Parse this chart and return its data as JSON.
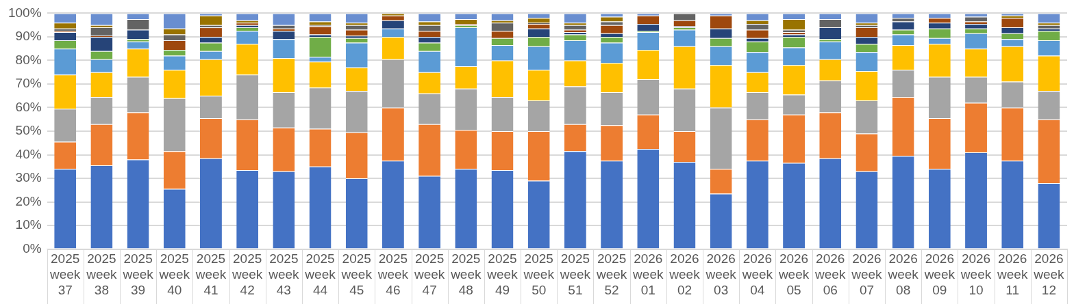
{
  "chart_data": {
    "type": "bar",
    "stacked": true,
    "categories": [
      "2025 week 37",
      "2025 week 38",
      "2025 week 39",
      "2025 week 40",
      "2025 week 41",
      "2025 week 42",
      "2025 week 43",
      "2025 week 44",
      "2025 week 45",
      "2025 week 46",
      "2025 week 47",
      "2025 week 48",
      "2025 week 49",
      "2025 week 50",
      "2025 week 51",
      "2025 week 52",
      "2026 week 01",
      "2026 week 02",
      "2026 week 03",
      "2026 week 04",
      "2026 week 05",
      "2026 week 06",
      "2026 week 07",
      "2026 week 08",
      "2026 week 09",
      "2026 week 10",
      "2026 week 11",
      "2026 week 12"
    ],
    "series": [
      {
        "color": "#4472c4",
        "values": [
          34,
          35.5,
          38,
          25.5,
          38.5,
          33.5,
          33,
          35,
          30,
          37.5,
          31,
          34,
          33.5,
          29,
          41.5,
          37.5,
          42.5,
          37,
          23.5,
          37.5,
          36.5,
          38.5,
          33,
          39.5,
          34,
          41,
          37.5,
          28
        ]
      },
      {
        "color": "#ed7d31",
        "values": [
          11.5,
          17.5,
          20,
          16,
          17,
          21.5,
          18.5,
          16,
          19.5,
          22.5,
          22,
          16.5,
          16.5,
          21,
          11.5,
          15,
          14.5,
          13,
          10.5,
          17.5,
          20.5,
          19.5,
          16,
          25,
          21.5,
          21,
          22.5,
          27
        ]
      },
      {
        "color": "#a5a5a5",
        "values": [
          14,
          11.5,
          15,
          22.5,
          9.5,
          19,
          15,
          17.5,
          17.5,
          20.5,
          13,
          17.5,
          14.5,
          13,
          16,
          14,
          15,
          18,
          26,
          11.5,
          8.5,
          13.5,
          14,
          11.5,
          17.5,
          11,
          11,
          12
        ]
      },
      {
        "color": "#ffc000",
        "values": [
          14.5,
          10.5,
          12,
          12,
          15.5,
          13,
          14.5,
          11,
          10,
          9.5,
          9,
          9.5,
          15.5,
          13,
          11,
          12.5,
          12.5,
          18,
          18,
          8.5,
          12.5,
          9,
          12.5,
          10.5,
          14,
          12,
          15,
          15
        ]
      },
      {
        "color": "#5b9bd5",
        "values": [
          11,
          5.5,
          3,
          6,
          3.5,
          5.5,
          8,
          2,
          10.5,
          3.5,
          9,
          16.5,
          6.5,
          10,
          8.5,
          8.5,
          7.5,
          7,
          8,
          8.5,
          7.5,
          7.5,
          8,
          4.5,
          2.5,
          6.5,
          3,
          6.5
        ]
      },
      {
        "color": "#70ad47",
        "values": [
          3.5,
          3.5,
          1,
          2.5,
          3.5,
          1.5,
          0,
          8.5,
          2,
          0,
          3.5,
          1,
          3,
          4,
          2.5,
          2.5,
          0.5,
          1,
          3.5,
          4.5,
          4.5,
          1,
          3.5,
          2,
          4,
          2,
          2.5,
          4
        ]
      },
      {
        "color": "#264478",
        "values": [
          3.5,
          6,
          4,
          0,
          2.5,
          1,
          3.5,
          1,
          1,
          3.5,
          2.5,
          0,
          0,
          3.5,
          1,
          1.5,
          3,
          0.5,
          4,
          1.5,
          1,
          5,
          3,
          3.5,
          2.5,
          2,
          2.5,
          1
        ]
      },
      {
        "color": "#9e480e",
        "values": [
          0.5,
          0.5,
          0,
          4,
          4,
          1,
          1,
          3.5,
          2.5,
          2,
          2.5,
          0.5,
          3,
          2,
          1,
          3.5,
          3.5,
          2.5,
          5.5,
          3.5,
          1,
          0,
          4,
          0,
          2,
          1,
          4,
          0
        ]
      },
      {
        "color": "#636363",
        "values": [
          1,
          3.5,
          4.5,
          2.5,
          1,
          0,
          1.5,
          0.5,
          2,
          0,
          2.5,
          0,
          3.5,
          0.5,
          2,
          1.5,
          0,
          3,
          0,
          2.5,
          1,
          3.5,
          1,
          1.5,
          0,
          2,
          0,
          1.5
        ]
      },
      {
        "color": "#997300",
        "values": [
          2.5,
          1,
          0,
          2.5,
          4,
          1,
          0,
          1.5,
          1,
          1,
          1.5,
          2,
          1,
          2,
          1,
          2,
          0,
          0,
          0,
          1.5,
          4.5,
          0,
          1,
          0,
          0,
          0,
          1,
          1
        ]
      },
      {
        "color": "#698ed0",
        "values": [
          4,
          5,
          2.5,
          6.5,
          1,
          3,
          5,
          3.5,
          4,
          0,
          3.5,
          2.5,
          3,
          2,
          4,
          1.5,
          1,
          0,
          1,
          3,
          2.5,
          2.5,
          4,
          2,
          2,
          1.5,
          1,
          4
        ]
      }
    ],
    "ylim": [
      0,
      100
    ],
    "yticks": [
      {
        "value": 0,
        "label": "0%"
      },
      {
        "value": 10,
        "label": "10%"
      },
      {
        "value": 20,
        "label": "20%"
      },
      {
        "value": 30,
        "label": "30%"
      },
      {
        "value": 40,
        "label": "40%"
      },
      {
        "value": 50,
        "label": "50%"
      },
      {
        "value": 60,
        "label": "60%"
      },
      {
        "value": 70,
        "label": "70%"
      },
      {
        "value": 80,
        "label": "80%"
      },
      {
        "value": 90,
        "label": "90%"
      },
      {
        "value": 100,
        "label": "100%"
      }
    ],
    "grid": "y"
  }
}
